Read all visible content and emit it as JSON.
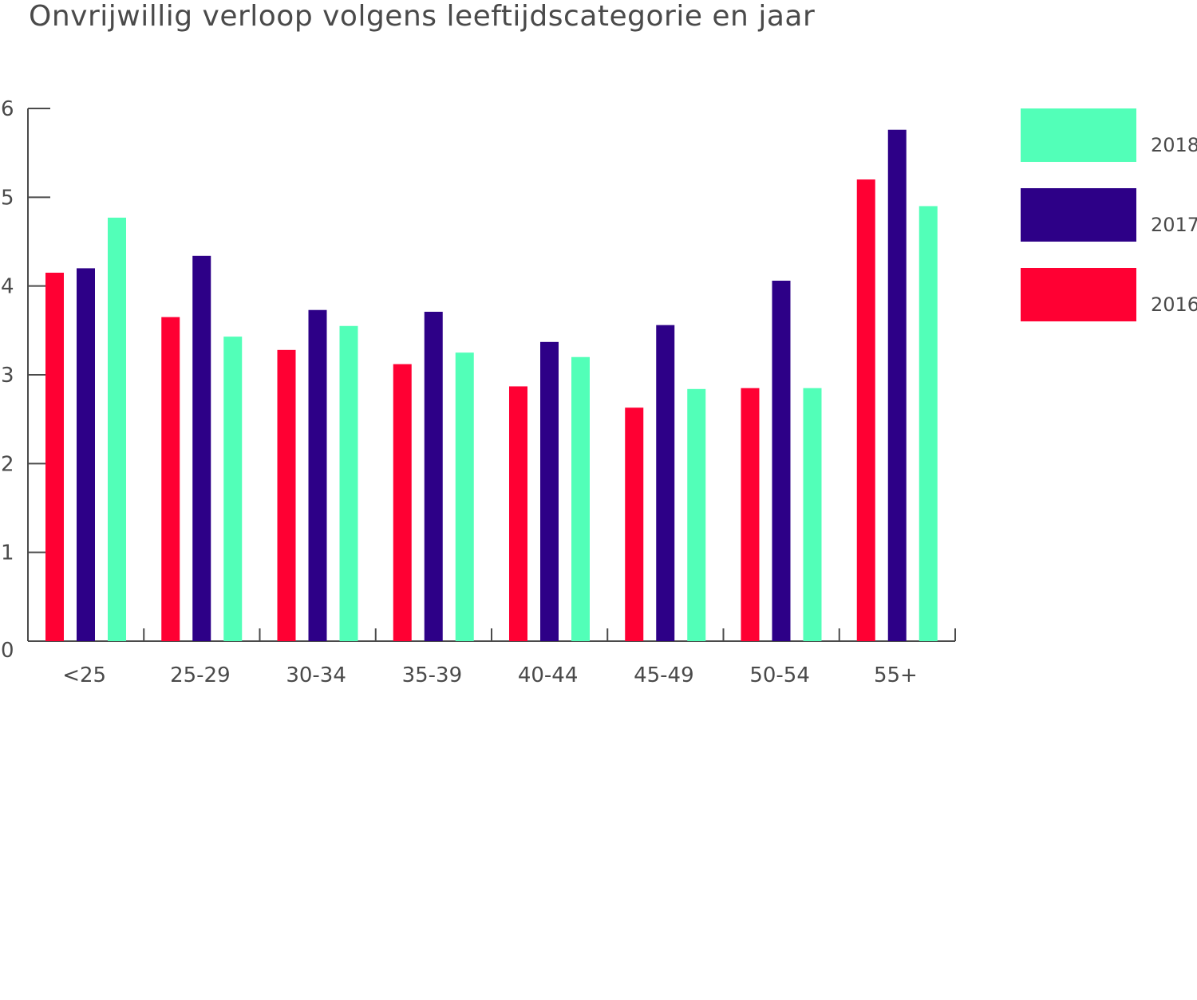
{
  "chart_data": {
    "type": "bar",
    "title": "Onvrijwillig verloop volgens leeftijdscategorie en jaar",
    "xlabel": "",
    "ylabel": "",
    "ylim": [
      0,
      6
    ],
    "yticks": [
      "0",
      "1",
      "2",
      "3",
      "4",
      "5",
      "6"
    ],
    "categories": [
      "<25",
      "25-29",
      "30-34",
      "35-39",
      "40-44",
      "45-49",
      "50-54",
      "55+"
    ],
    "series": [
      {
        "name": "2016",
        "color": "#ff0033",
        "values": [
          4.15,
          3.65,
          3.28,
          3.12,
          2.87,
          2.63,
          2.85,
          5.2
        ]
      },
      {
        "name": "2017",
        "color": "#2d0087",
        "values": [
          4.2,
          4.34,
          3.73,
          3.71,
          3.37,
          3.56,
          4.06,
          5.76
        ]
      },
      {
        "name": "2018",
        "color": "#52ffb8",
        "values": [
          4.77,
          3.43,
          3.55,
          3.25,
          3.2,
          2.84,
          2.85,
          4.9
        ]
      }
    ],
    "legend": {
      "placement": "right",
      "order": [
        "2018",
        "2017",
        "2016"
      ]
    },
    "grid": false
  }
}
